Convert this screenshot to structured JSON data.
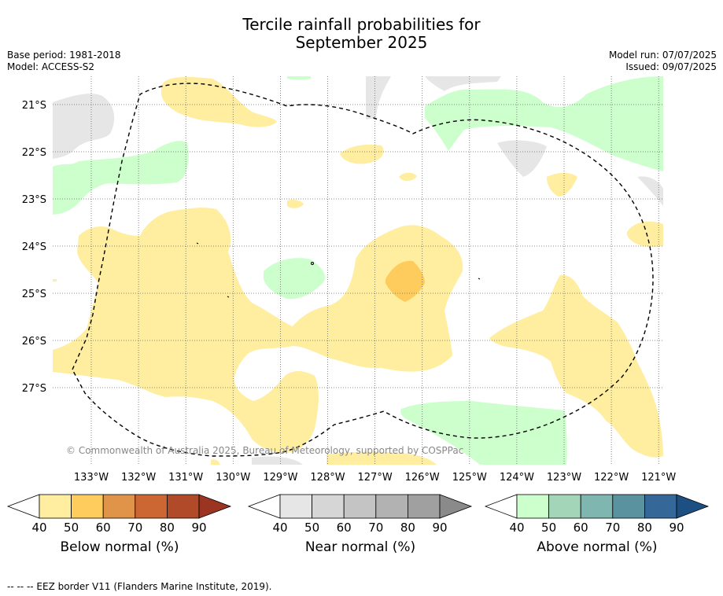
{
  "title_line1": "Tercile rainfall probabilities for",
  "title_line2": "September 2025",
  "meta_left": {
    "base_period": "Base period: 1981-2018",
    "model": "Model: ACCESS-S2"
  },
  "meta_right": {
    "model_run": "Model run: 07/07/2025",
    "issued": "Issued: 09/07/2025"
  },
  "map": {
    "lat_labels": [
      "21°S",
      "22°S",
      "23°S",
      "24°S",
      "25°S",
      "26°S",
      "27°S"
    ],
    "lon_labels": [
      "133°W",
      "132°W",
      "131°W",
      "130°W",
      "129°W",
      "128°W",
      "127°W",
      "126°W",
      "125°W",
      "124°W",
      "123°W",
      "122°W",
      "121°W"
    ],
    "copyright": "© Commonwealth of Australia 2025, Bureau of Meteorology, supported by COSPPac"
  },
  "colorbars": [
    {
      "label": "Below normal (%)",
      "ticks": [
        "40",
        "50",
        "60",
        "70",
        "80",
        "90"
      ],
      "colors": [
        "#ffffff",
        "#ffeda0",
        "#fecc5c",
        "#e0944a",
        "#cc6633",
        "#b04a28",
        "#9b3420"
      ]
    },
    {
      "label": "Near normal (%)",
      "ticks": [
        "40",
        "50",
        "60",
        "70",
        "80",
        "90"
      ],
      "colors": [
        "#ffffff",
        "#e6e6e6",
        "#d6d6d6",
        "#c4c4c4",
        "#b2b2b2",
        "#a0a0a0",
        "#8a8a8a"
      ]
    },
    {
      "label": "Above normal (%)",
      "ticks": [
        "40",
        "50",
        "60",
        "70",
        "80",
        "90"
      ],
      "colors": [
        "#ffffff",
        "#ccffcc",
        "#a3d6b8",
        "#80b6b0",
        "#5a92a0",
        "#356898",
        "#1c4f82"
      ]
    }
  ],
  "footnote": "--  --  -- EEZ border V11 (Flanders Marine Institute, 2019)."
}
